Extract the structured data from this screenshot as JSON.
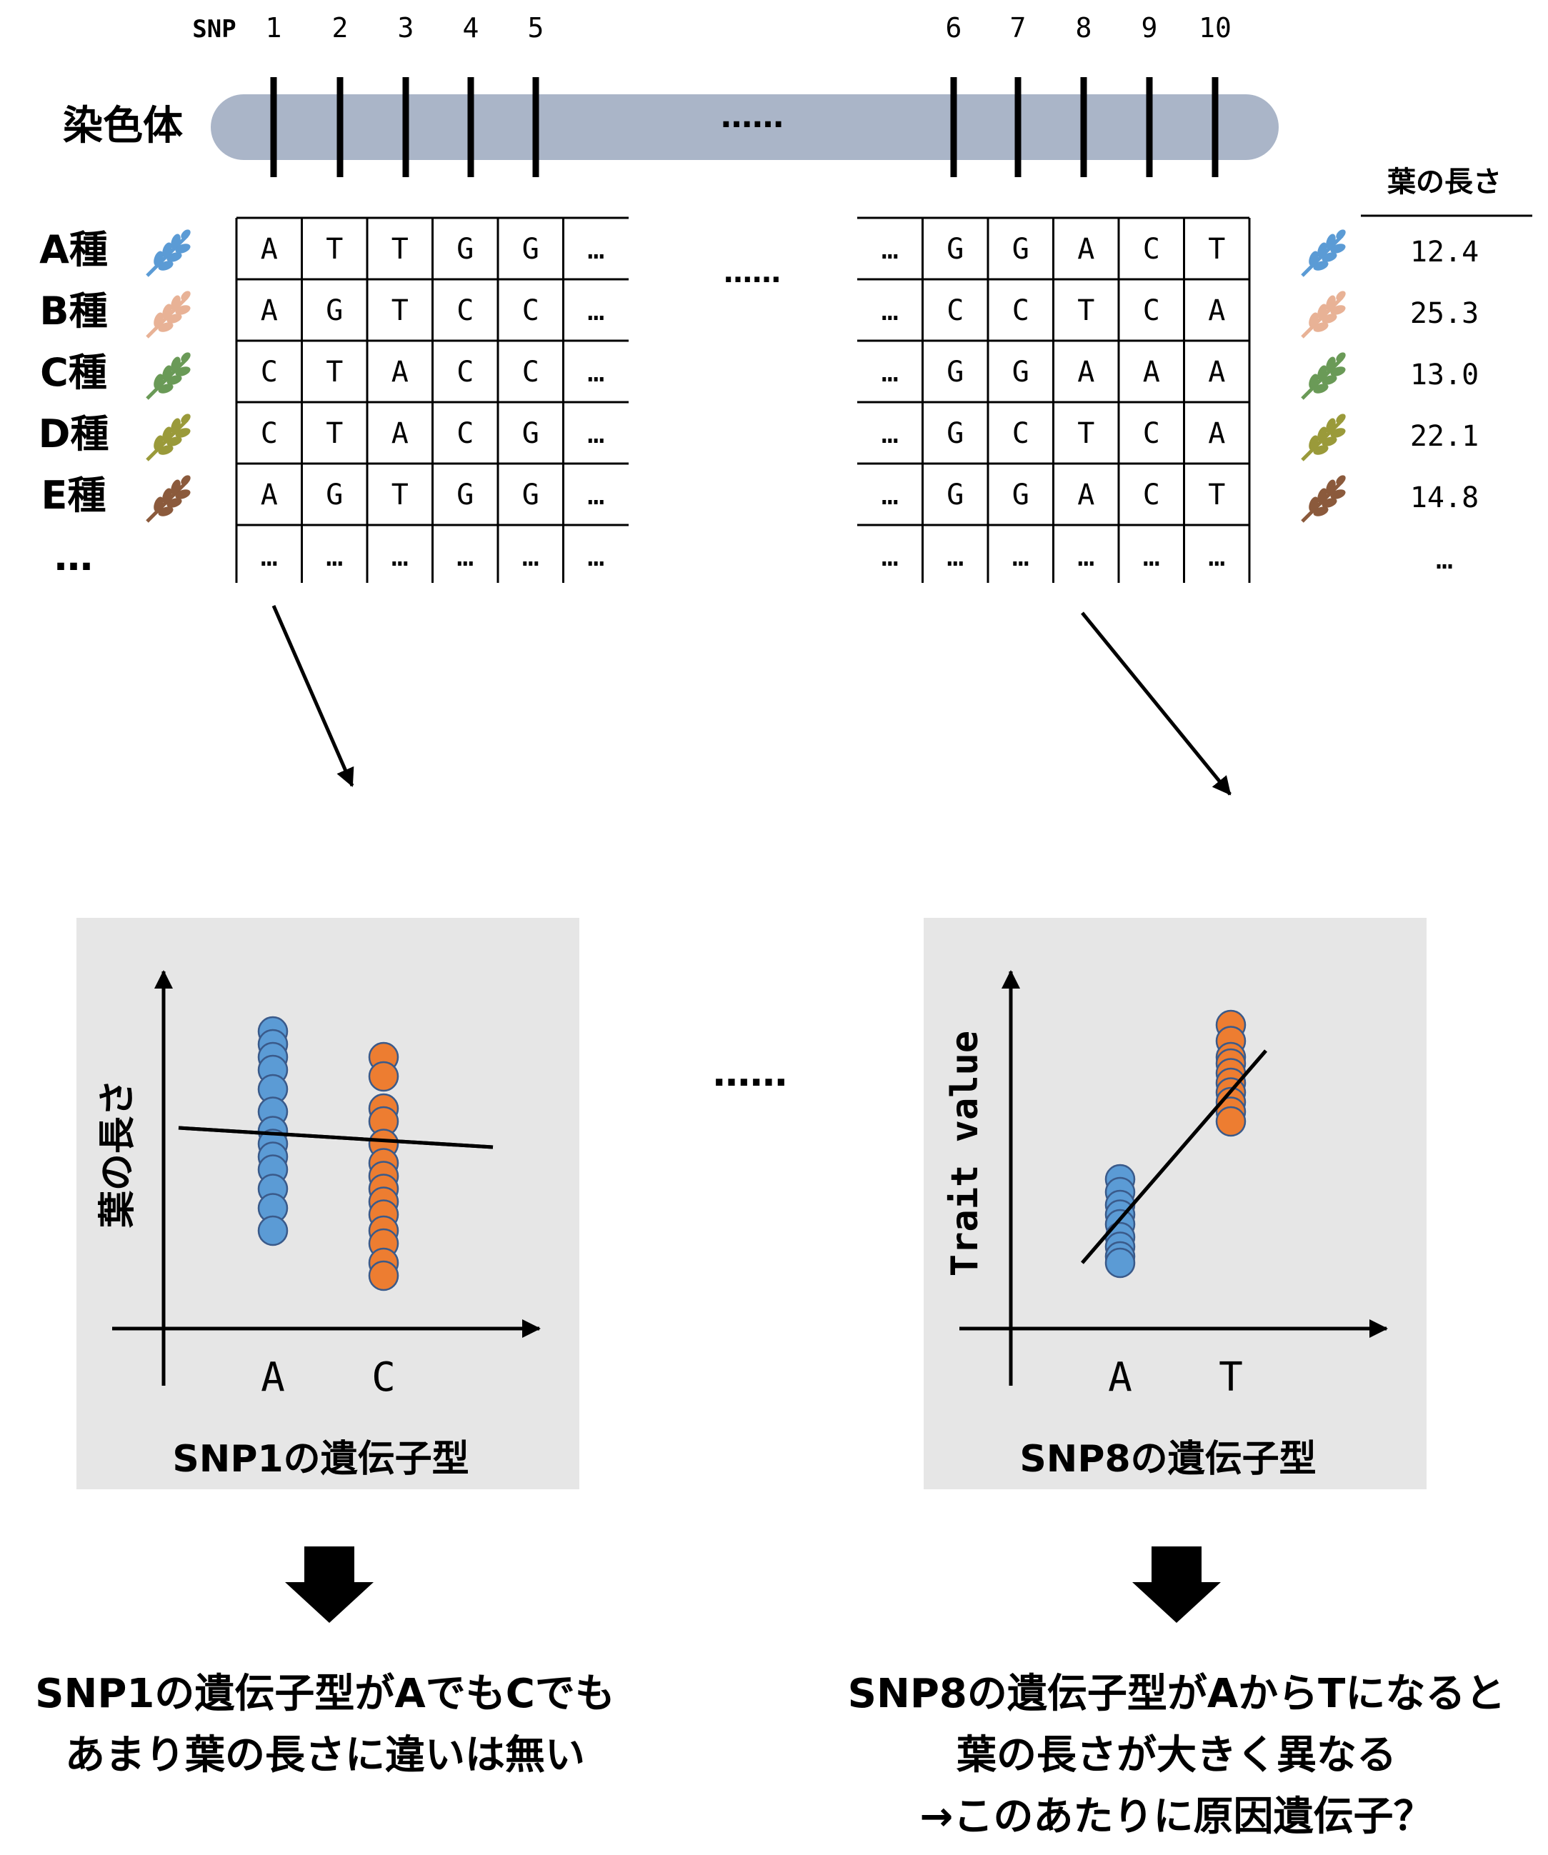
{
  "snp_label": "SNP",
  "snp_numbers": [
    "1",
    "2",
    "3",
    "4",
    "5",
    "6",
    "7",
    "8",
    "9",
    "10"
  ],
  "chromosome_label": "染色体",
  "chromosome_ellipsis": "……",
  "table_middle_ellipsis": "……",
  "species": [
    "A種",
    "B種",
    "C種",
    "D種",
    "E種",
    "…"
  ],
  "leaf_colors": [
    "#5b9bd5",
    "#e8b296",
    "#6a9a57",
    "#9a9a3a",
    "#8b5a3c"
  ],
  "left_table": {
    "rows": [
      [
        "A",
        "T",
        "T",
        "G",
        "G",
        "…"
      ],
      [
        "A",
        "G",
        "T",
        "C",
        "C",
        "…"
      ],
      [
        "C",
        "T",
        "A",
        "C",
        "C",
        "…"
      ],
      [
        "C",
        "T",
        "A",
        "C",
        "G",
        "…"
      ],
      [
        "A",
        "G",
        "T",
        "G",
        "G",
        "…"
      ],
      [
        "…",
        "…",
        "…",
        "…",
        "…",
        "…"
      ]
    ]
  },
  "right_table": {
    "rows": [
      [
        "…",
        "G",
        "G",
        "A",
        "C",
        "T"
      ],
      [
        "…",
        "C",
        "C",
        "T",
        "C",
        "A"
      ],
      [
        "…",
        "G",
        "G",
        "A",
        "A",
        "A"
      ],
      [
        "…",
        "G",
        "C",
        "T",
        "C",
        "A"
      ],
      [
        "…",
        "G",
        "G",
        "A",
        "C",
        "T"
      ],
      [
        "…",
        "…",
        "…",
        "…",
        "…",
        "…"
      ]
    ]
  },
  "trait_header": "葉の長さ",
  "trait_values": [
    "12.4",
    "25.3",
    "13.0",
    "22.1",
    "14.8",
    "…"
  ],
  "middle_ellipsis": "……",
  "chart_data": [
    {
      "type": "scatter",
      "xlabel": "SNP1の遺伝子型",
      "ylabel": "葉の長さ",
      "categories": [
        "A",
        "C"
      ],
      "series": [
        {
          "category": "A",
          "color": "#5b9bd5",
          "values": [
            0.88,
            0.84,
            0.8,
            0.76,
            0.7,
            0.63,
            0.57,
            0.53,
            0.49,
            0.45,
            0.39,
            0.33,
            0.26
          ]
        },
        {
          "category": "C",
          "color": "#ed7d31",
          "values": [
            0.8,
            0.74,
            0.64,
            0.6,
            0.53,
            0.47,
            0.43,
            0.39,
            0.35,
            0.31,
            0.26,
            0.22,
            0.16,
            0.12
          ]
        }
      ],
      "trend_line": {
        "start": 0.58,
        "end": 0.52
      }
    },
    {
      "type": "scatter",
      "xlabel": "SNP8の遺伝子型",
      "ylabel": "Trait value",
      "categories": [
        "A",
        "T"
      ],
      "series": [
        {
          "category": "A",
          "color": "#5b9bd5",
          "values": [
            0.42,
            0.38,
            0.34,
            0.31,
            0.28,
            0.24,
            0.21,
            0.18,
            0.16
          ]
        },
        {
          "category": "T",
          "color": "#ed7d31",
          "values": [
            0.9,
            0.85,
            0.8,
            0.78,
            0.75,
            0.72,
            0.69,
            0.66,
            0.63,
            0.6
          ]
        }
      ],
      "trend_line": {
        "start": 0.16,
        "end": 0.82
      }
    }
  ],
  "conclusion_left": [
    "SNP1の遺伝子型がAでもCでも",
    "あまり葉の長さに違いは無い"
  ],
  "conclusion_right": [
    "SNP8の遺伝子型がAからTになると",
    "葉の長さが大きく異なる",
    "→このあたりに原因遺伝子？"
  ]
}
